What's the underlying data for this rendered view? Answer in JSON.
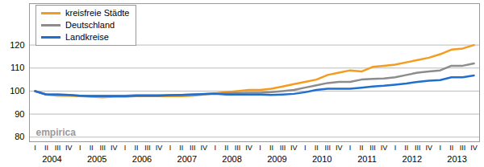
{
  "chart_data": {
    "type": "line",
    "categories": [
      "I",
      "II",
      "III",
      "IV",
      "I",
      "II",
      "III",
      "IV",
      "I",
      "II",
      "III",
      "IV",
      "I",
      "II",
      "III",
      "IV",
      "I",
      "II",
      "III",
      "IV",
      "I",
      "II",
      "III",
      "IV",
      "I",
      "II",
      "III",
      "IV",
      "I",
      "II",
      "III",
      "IV",
      "I",
      "II",
      "III",
      "IV",
      "I",
      "II",
      "III",
      "IV"
    ],
    "category_groups": [
      "2004",
      "2005",
      "2006",
      "2007",
      "2008",
      "2009",
      "2010",
      "2011",
      "2012",
      "2013"
    ],
    "series": [
      {
        "name": "kreisfreie Städte",
        "color": "#f39c1f",
        "values": [
          100,
          98.5,
          98,
          98,
          97.8,
          97.5,
          97.3,
          97.5,
          97.5,
          97.8,
          97.8,
          97.8,
          97.8,
          97.8,
          98,
          98.5,
          99,
          99.5,
          100,
          100.5,
          100.5,
          101,
          102,
          103,
          104,
          105,
          107,
          108,
          109,
          108.5,
          110.5,
          111,
          111.5,
          112.5,
          113.5,
          114.5,
          116,
          118,
          118.5,
          120
        ]
      },
      {
        "name": "Deutschland",
        "color": "#8c8c8c",
        "values": [
          100,
          98.5,
          98.5,
          98.3,
          98,
          98,
          98,
          98,
          98,
          98.2,
          98.2,
          98.2,
          98.2,
          98.3,
          98.5,
          98.8,
          99,
          99,
          99.2,
          99.3,
          99.3,
          99.5,
          100,
          100.5,
          101.5,
          102.5,
          103.5,
          104,
          104,
          105,
          105.3,
          105.5,
          106,
          107,
          108,
          108.5,
          109,
          111,
          111,
          112
        ]
      },
      {
        "name": "Landkreise",
        "color": "#1f6fd1",
        "values": [
          100,
          98.5,
          98.5,
          98.3,
          98,
          97.8,
          97.8,
          97.8,
          97.8,
          98,
          98,
          98,
          98.2,
          98.3,
          98.5,
          98.7,
          98.8,
          98.5,
          98.5,
          98.5,
          98.5,
          98.3,
          98.5,
          98.8,
          99.5,
          100.5,
          101,
          101,
          101,
          101.5,
          102,
          102.3,
          102.8,
          103.3,
          104,
          104.5,
          104.8,
          106,
          106,
          106.8
        ]
      }
    ],
    "ylim": [
      78,
      138
    ],
    "yticks": [
      80,
      90,
      100,
      110,
      120
    ],
    "grid": true,
    "legend": "top-left",
    "annotations": [
      {
        "text": "empirica"
      }
    ]
  }
}
